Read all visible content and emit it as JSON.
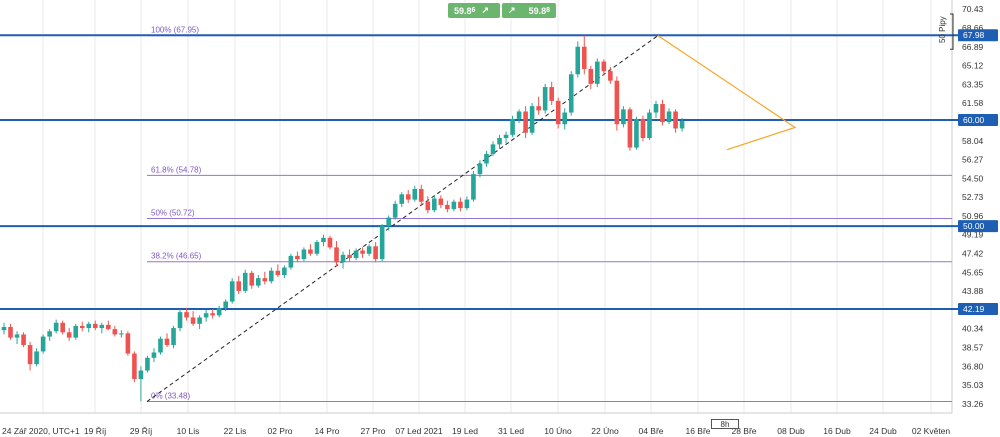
{
  "trade_buttons": {
    "sell_price": "59.8",
    "sell_superscript": "6",
    "buy_price": "59.8",
    "buy_superscript": "8",
    "sell_icon": "diagonal-arrow-icon",
    "buy_icon": "diagonal-arrow-icon"
  },
  "interval_label": "8h",
  "pips_label": "50 Pipy",
  "colors": {
    "up": "#26a69a",
    "down": "#ef5350",
    "level_line": "#1e5fb4",
    "fib": "#9575cd",
    "triangle": "#f5a623",
    "grid": "#e8e8e8"
  },
  "chart_data": {
    "type": "candlestick",
    "y_axis_ticks": [
      "70.43",
      "68.66",
      "66.89",
      "65.12",
      "63.35",
      "61.58",
      "58.04",
      "56.27",
      "54.50",
      "52.73",
      "50.96",
      "49.19",
      "47.42",
      "45.65",
      "43.88",
      "40.34",
      "38.57",
      "36.80",
      "35.03",
      "33.26"
    ],
    "ylim": [
      32.4,
      71.3
    ],
    "x_axis_ticks": [
      "24 Zář 2020, UTC+1",
      "19 Říj",
      "29 Říj",
      "10 Lis",
      "22 Lis",
      "02 Pro",
      "14 Pro",
      "27 Pro",
      "07 Led 2021",
      "19 Led",
      "31 Led",
      "10 Úno",
      "22 Úno",
      "04 Bře",
      "16 Bře",
      "28 Bře",
      "08 Dub",
      "16 Dub",
      "24 Dub",
      "02 Květen"
    ],
    "horizontal_levels": [
      {
        "value": 67.98,
        "label": "67.98"
      },
      {
        "value": 60.0,
        "label": "60.00"
      },
      {
        "value": 50.0,
        "label": "50.00"
      },
      {
        "value": 42.19,
        "label": "42.19"
      }
    ],
    "fibonacci_levels": [
      {
        "label": "100% (67.95)",
        "value": 67.95
      },
      {
        "label": "61.8% (54.78)",
        "value": 54.78
      },
      {
        "label": "50% (50.72)",
        "value": 50.72
      },
      {
        "label": "38.2% (46.65)",
        "value": 46.65
      },
      {
        "label": "0% (33.48)",
        "value": 33.48
      }
    ],
    "candles": [
      [
        40.2,
        40.9,
        39.8,
        40.5
      ],
      [
        40.5,
        40.8,
        39.3,
        39.5
      ],
      [
        39.5,
        40.1,
        38.9,
        39.8
      ],
      [
        39.8,
        40.0,
        38.6,
        38.8
      ],
      [
        38.8,
        39.1,
        36.4,
        37.0
      ],
      [
        37.0,
        38.5,
        36.8,
        38.2
      ],
      [
        38.2,
        39.8,
        38.0,
        39.6
      ],
      [
        39.6,
        40.3,
        39.2,
        40.1
      ],
      [
        40.1,
        41.2,
        39.9,
        40.9
      ],
      [
        40.9,
        41.1,
        39.8,
        40.0
      ],
      [
        40.0,
        40.4,
        39.2,
        39.5
      ],
      [
        39.5,
        40.8,
        39.3,
        40.6
      ],
      [
        40.6,
        41.0,
        40.1,
        40.4
      ],
      [
        40.4,
        41.0,
        40.0,
        40.8
      ],
      [
        40.8,
        41.1,
        40.2,
        40.4
      ],
      [
        40.4,
        40.9,
        39.9,
        40.7
      ],
      [
        40.7,
        41.1,
        40.2,
        40.3
      ],
      [
        40.3,
        40.6,
        39.6,
        39.8
      ],
      [
        39.8,
        40.2,
        39.5,
        39.9
      ],
      [
        39.9,
        40.1,
        37.8,
        38.0
      ],
      [
        38.0,
        38.2,
        35.3,
        35.6
      ],
      [
        35.6,
        36.8,
        33.5,
        36.4
      ],
      [
        36.4,
        37.8,
        36.2,
        37.6
      ],
      [
        37.6,
        38.5,
        37.2,
        38.1
      ],
      [
        38.1,
        39.6,
        37.9,
        39.4
      ],
      [
        39.4,
        39.9,
        38.6,
        38.8
      ],
      [
        38.8,
        40.6,
        38.5,
        40.4
      ],
      [
        40.4,
        42.2,
        40.1,
        41.9
      ],
      [
        41.9,
        42.3,
        41.1,
        41.4
      ],
      [
        41.4,
        42.0,
        40.6,
        40.8
      ],
      [
        40.8,
        41.6,
        40.3,
        41.4
      ],
      [
        41.4,
        42.1,
        41.0,
        41.8
      ],
      [
        41.8,
        42.2,
        41.3,
        41.6
      ],
      [
        41.6,
        42.5,
        41.4,
        42.3
      ],
      [
        42.3,
        43.1,
        42.0,
        42.9
      ],
      [
        42.9,
        45.1,
        42.7,
        44.8
      ],
      [
        44.8,
        45.3,
        43.6,
        43.9
      ],
      [
        43.9,
        45.9,
        43.7,
        45.6
      ],
      [
        45.6,
        45.8,
        44.1,
        44.4
      ],
      [
        44.4,
        45.4,
        44.2,
        45.1
      ],
      [
        45.1,
        45.7,
        44.5,
        44.8
      ],
      [
        44.8,
        46.1,
        44.6,
        45.8
      ],
      [
        45.8,
        46.4,
        45.2,
        45.4
      ],
      [
        45.4,
        46.3,
        45.1,
        46.1
      ],
      [
        46.1,
        47.4,
        45.9,
        47.2
      ],
      [
        47.2,
        47.6,
        46.6,
        46.9
      ],
      [
        46.9,
        48.0,
        46.7,
        47.8
      ],
      [
        47.8,
        48.3,
        47.2,
        47.4
      ],
      [
        47.4,
        48.7,
        47.2,
        48.5
      ],
      [
        48.5,
        49.2,
        48.1,
        48.9
      ],
      [
        48.9,
        49.1,
        47.8,
        48.0
      ],
      [
        48.0,
        48.6,
        46.2,
        46.6
      ],
      [
        46.6,
        47.6,
        46.0,
        47.3
      ],
      [
        47.3,
        47.8,
        46.7,
        47.0
      ],
      [
        47.0,
        47.9,
        46.8,
        47.7
      ],
      [
        47.7,
        48.0,
        47.0,
        47.4
      ],
      [
        47.4,
        48.3,
        47.2,
        48.1
      ],
      [
        48.1,
        48.5,
        46.6,
        46.9
      ],
      [
        46.9,
        50.2,
        46.7,
        50.0
      ],
      [
        50.0,
        51.0,
        49.6,
        50.8
      ],
      [
        50.8,
        52.4,
        50.6,
        52.1
      ],
      [
        52.1,
        53.2,
        51.8,
        53.0
      ],
      [
        53.0,
        53.4,
        52.2,
        52.5
      ],
      [
        52.5,
        53.8,
        52.3,
        53.5
      ],
      [
        53.5,
        53.9,
        52.0,
        52.3
      ],
      [
        52.3,
        52.8,
        51.2,
        51.5
      ],
      [
        51.5,
        52.9,
        51.3,
        52.6
      ],
      [
        52.6,
        52.9,
        51.7,
        52.0
      ],
      [
        52.0,
        52.4,
        51.3,
        51.6
      ],
      [
        51.6,
        52.5,
        51.4,
        52.3
      ],
      [
        52.3,
        52.7,
        51.4,
        51.7
      ],
      [
        51.7,
        52.8,
        51.5,
        52.5
      ],
      [
        52.5,
        55.2,
        52.3,
        54.9
      ],
      [
        54.9,
        56.2,
        54.6,
        55.9
      ],
      [
        55.9,
        57.1,
        55.6,
        56.8
      ],
      [
        56.8,
        58.0,
        56.6,
        57.7
      ],
      [
        57.7,
        58.6,
        57.3,
        58.3
      ],
      [
        58.3,
        58.9,
        57.8,
        58.6
      ],
      [
        58.6,
        60.4,
        58.4,
        60.1
      ],
      [
        60.1,
        61.0,
        59.7,
        60.8
      ],
      [
        60.8,
        61.3,
        58.3,
        58.8
      ],
      [
        58.8,
        61.6,
        58.6,
        61.3
      ],
      [
        61.3,
        62.2,
        60.5,
        60.9
      ],
      [
        60.9,
        63.4,
        60.6,
        63.1
      ],
      [
        63.1,
        63.6,
        61.4,
        61.8
      ],
      [
        61.8,
        62.1,
        59.2,
        59.6
      ],
      [
        59.6,
        61.1,
        59.1,
        60.7
      ],
      [
        60.7,
        64.6,
        60.4,
        64.3
      ],
      [
        64.3,
        67.4,
        64.0,
        66.9
      ],
      [
        66.9,
        67.95,
        64.3,
        64.8
      ],
      [
        64.8,
        65.1,
        62.9,
        63.4
      ],
      [
        63.4,
        65.8,
        63.1,
        65.5
      ],
      [
        65.5,
        65.7,
        64.2,
        64.6
      ],
      [
        64.6,
        65.0,
        63.4,
        63.7
      ],
      [
        63.7,
        64.1,
        59.0,
        59.6
      ],
      [
        59.6,
        61.3,
        59.3,
        61.0
      ],
      [
        61.0,
        61.2,
        57.1,
        57.4
      ],
      [
        57.4,
        60.3,
        57.2,
        60.1
      ],
      [
        60.1,
        60.4,
        58.0,
        58.3
      ],
      [
        58.3,
        61.0,
        58.1,
        60.7
      ],
      [
        60.7,
        61.8,
        60.2,
        61.5
      ],
      [
        61.5,
        61.9,
        59.5,
        59.8
      ],
      [
        59.8,
        61.1,
        59.6,
        60.8
      ],
      [
        60.8,
        61.0,
        58.8,
        59.2
      ],
      [
        59.2,
        60.2,
        58.9,
        59.9
      ]
    ],
    "last_candle_index_label": "08 Dub"
  }
}
